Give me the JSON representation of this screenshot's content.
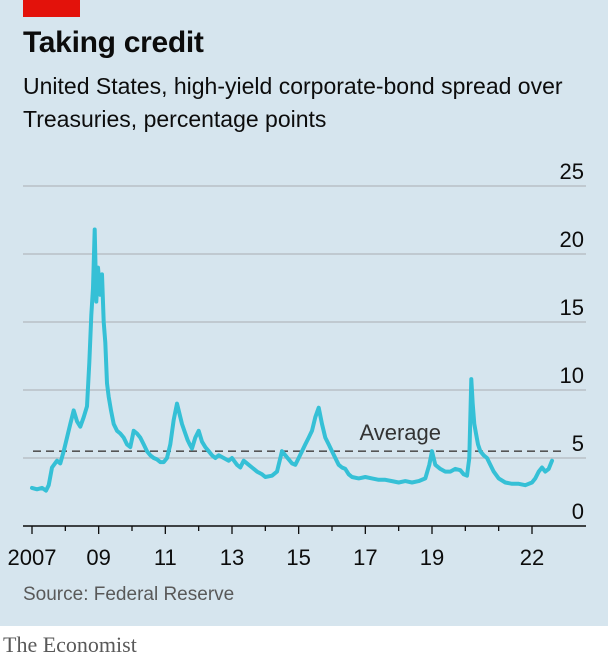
{
  "header": {
    "title": "Taking credit",
    "subtitle": "United States, high-yield corporate-bond spread over Treasuries, percentage points"
  },
  "footer": {
    "source": "Source: Federal Reserve",
    "brand": "The Economist"
  },
  "colors": {
    "background": "#d6e5ee",
    "accent": "#e3120b",
    "series": "#35c0d6",
    "gridline": "#b3b9be",
    "average_line": "#555555"
  },
  "chart_data": {
    "type": "line",
    "title": "Taking credit",
    "subtitle": "United States, high-yield corporate-bond spread over Treasuries, percentage points",
    "xlabel": "",
    "ylabel": "",
    "ylim": [
      0,
      25
    ],
    "xlim": [
      2006.9,
      2022.75
    ],
    "y_ticks": [
      0,
      5,
      10,
      15,
      20,
      25
    ],
    "x_ticks": [
      {
        "value": 2007,
        "label": "2007"
      },
      {
        "value": 2009,
        "label": "09"
      },
      {
        "value": 2011,
        "label": "11"
      },
      {
        "value": 2013,
        "label": "13"
      },
      {
        "value": 2015,
        "label": "15"
      },
      {
        "value": 2017,
        "label": "17"
      },
      {
        "value": 2019,
        "label": "19"
      },
      {
        "value": 2022,
        "label": "22"
      }
    ],
    "grid": true,
    "y_axis_position": "right",
    "reference_line": {
      "label": "Average",
      "value": 5.5,
      "style": "dashed"
    },
    "series": [
      {
        "x": [
          2007.0,
          2007.15,
          2007.3,
          2007.42,
          2007.5,
          2007.6,
          2007.75,
          2007.85,
          2007.95,
          2008.05,
          2008.15,
          2008.25,
          2008.35,
          2008.45,
          2008.55,
          2008.65,
          2008.72,
          2008.78,
          2008.83,
          2008.88,
          2008.93,
          2008.98,
          2009.05,
          2009.1,
          2009.15,
          2009.2,
          2009.25,
          2009.3,
          2009.37,
          2009.45,
          2009.55,
          2009.65,
          2009.75,
          2009.85,
          2009.95,
          2010.05,
          2010.15,
          2010.25,
          2010.35,
          2010.45,
          2010.55,
          2010.65,
          2010.75,
          2010.85,
          2010.95,
          2011.05,
          2011.15,
          2011.25,
          2011.35,
          2011.5,
          2011.6,
          2011.67,
          2011.73,
          2011.8,
          2011.9,
          2012.0,
          2012.1,
          2012.2,
          2012.3,
          2012.4,
          2012.5,
          2012.6,
          2012.75,
          2012.9,
          2013.0,
          2013.15,
          2013.25,
          2013.35,
          2013.5,
          2013.6,
          2013.75,
          2013.9,
          2014.0,
          2014.2,
          2014.35,
          2014.5,
          2014.6,
          2014.7,
          2014.8,
          2014.9,
          2015.0,
          2015.1,
          2015.2,
          2015.3,
          2015.4,
          2015.5,
          2015.6,
          2015.7,
          2015.8,
          2015.9,
          2016.0,
          2016.1,
          2016.2,
          2016.3,
          2016.4,
          2016.5,
          2016.6,
          2016.8,
          2017.0,
          2017.2,
          2017.4,
          2017.6,
          2017.8,
          2018.0,
          2018.2,
          2018.4,
          2018.6,
          2018.8,
          2018.92,
          2019.0,
          2019.1,
          2019.25,
          2019.4,
          2019.55,
          2019.7,
          2019.85,
          2019.95,
          2020.05,
          2020.12,
          2020.18,
          2020.22,
          2020.27,
          2020.32,
          2020.38,
          2020.45,
          2020.55,
          2020.65,
          2020.75,
          2020.85,
          2021.0,
          2021.2,
          2021.4,
          2021.6,
          2021.8,
          2022.0,
          2022.1,
          2022.2,
          2022.3,
          2022.4,
          2022.5,
          2022.6
        ],
        "values": [
          2.8,
          2.7,
          2.8,
          2.6,
          3.0,
          4.3,
          4.8,
          4.6,
          5.5,
          6.5,
          7.5,
          8.5,
          7.7,
          7.3,
          8.0,
          8.8,
          12.0,
          15.5,
          17.5,
          21.8,
          16.5,
          19.0,
          17.0,
          18.5,
          15.0,
          13.5,
          10.5,
          9.5,
          8.5,
          7.5,
          7.0,
          6.8,
          6.5,
          6.0,
          5.8,
          7.0,
          6.8,
          6.5,
          6.0,
          5.5,
          5.2,
          5.0,
          4.9,
          4.7,
          4.7,
          5.0,
          6.0,
          7.8,
          9.0,
          7.5,
          6.8,
          6.3,
          6.0,
          5.7,
          6.5,
          7.0,
          6.2,
          5.8,
          5.5,
          5.2,
          5.0,
          5.2,
          5.0,
          4.8,
          5.0,
          4.5,
          4.3,
          4.8,
          4.5,
          4.3,
          4.0,
          3.8,
          3.6,
          3.7,
          4.0,
          5.5,
          5.2,
          4.9,
          4.6,
          4.5,
          5.0,
          5.5,
          6.0,
          6.5,
          7.0,
          8.0,
          8.7,
          7.5,
          6.5,
          6.0,
          5.5,
          5.0,
          4.5,
          4.3,
          4.2,
          3.8,
          3.6,
          3.5,
          3.6,
          3.5,
          3.4,
          3.4,
          3.3,
          3.2,
          3.3,
          3.2,
          3.3,
          3.5,
          4.5,
          5.5,
          4.5,
          4.2,
          4.0,
          4.0,
          4.2,
          4.1,
          3.8,
          3.7,
          5.0,
          10.8,
          9.0,
          7.5,
          6.8,
          6.0,
          5.5,
          5.2,
          5.0,
          4.5,
          4.0,
          3.5,
          3.2,
          3.1,
          3.1,
          3.0,
          3.2,
          3.5,
          4.0,
          4.3,
          4.0,
          4.2,
          4.8
        ]
      }
    ]
  }
}
